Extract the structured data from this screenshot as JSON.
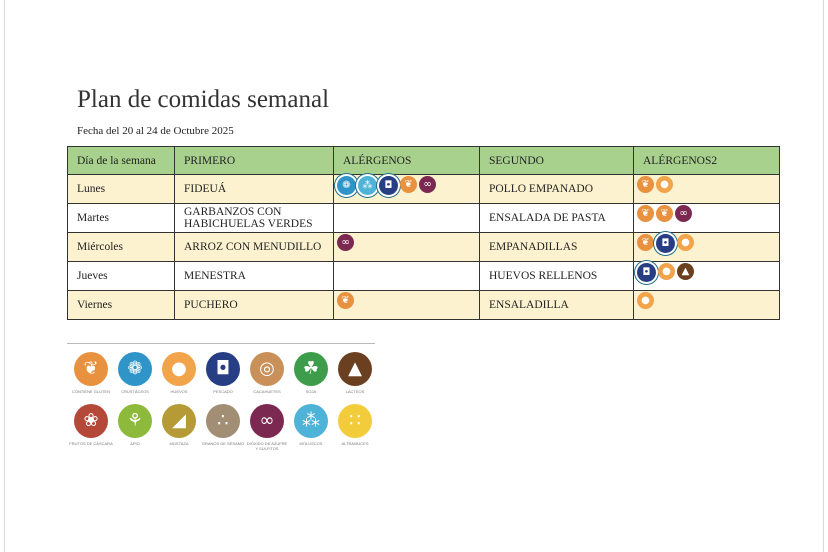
{
  "title": "Plan de comidas semanal",
  "date": "Fecha del 20 al 24 de Octubre 2025",
  "headers": [
    "Día de la semana",
    "PRIMERO",
    "ALÉRGENOS",
    "SEGUNDO",
    "ALÉRGENOS2"
  ],
  "rows": [
    {
      "day": "Lunes",
      "primero": "FIDEUÁ",
      "segundo": "POLLO EMPANADO"
    },
    {
      "day": "Martes",
      "primero": "GARBANZOS CON HABICHUELAS VERDES",
      "segundo": "ENSALADA DE PASTA"
    },
    {
      "day": "Miércoles",
      "primero": "ARROZ CON MENUDILLO",
      "segundo": "EMPANADILLAS"
    },
    {
      "day": "Jueves",
      "primero": "MENESTRA",
      "segundo": "HUEVOS RELLENOS"
    },
    {
      "day": "Viernes",
      "primero": "PUCHERO",
      "segundo": "ENSALADILLA"
    }
  ],
  "row_allergens": [
    {
      "primero": [
        "crustaceos-icon",
        "moluscos-icon",
        "pescado-icon",
        "gluten-icon",
        "sulfitos-icon"
      ],
      "segundo": [
        "gluten-icon",
        "huevos-icon"
      ]
    },
    {
      "primero": [],
      "segundo": [
        "gluten-icon",
        "gluten-icon",
        "sulfitos-icon"
      ]
    },
    {
      "primero": [
        "sulfitos-icon"
      ],
      "segundo": [
        "gluten-icon",
        "pescado-icon",
        "huevos-icon"
      ]
    },
    {
      "primero": [],
      "segundo": [
        "pescado-icon",
        "huevos-icon",
        "lacteos-icon"
      ]
    },
    {
      "primero": [
        "gluten-icon"
      ],
      "segundo": [
        "huevos-icon"
      ]
    }
  ],
  "legend": [
    {
      "icon": "gluten-icon",
      "label": "Contiene gluten",
      "color": "#e8913f"
    },
    {
      "icon": "crustaceos-icon",
      "label": "Crustáceos",
      "color": "#2f95c9"
    },
    {
      "icon": "huevos-icon",
      "label": "Huevos",
      "color": "#f1a44a"
    },
    {
      "icon": "pescado-icon",
      "label": "Pescado",
      "color": "#283e84"
    },
    {
      "icon": "cacahuetes-icon",
      "label": "Cacahuetes",
      "color": "#c9905a"
    },
    {
      "icon": "soja-icon",
      "label": "Soja",
      "color": "#3d9d4a"
    },
    {
      "icon": "lacteos-icon",
      "label": "Lácteos",
      "color": "#6b4021"
    },
    {
      "icon": "frutos-cascara-icon",
      "label": "Frutos de cáscara",
      "color": "#b4493a"
    },
    {
      "icon": "apio-icon",
      "label": "Apio",
      "color": "#8dba3a"
    },
    {
      "icon": "mostaza-icon",
      "label": "Mostaza",
      "color": "#b59a35"
    },
    {
      "icon": "sesamo-icon",
      "label": "Granos de sésamo",
      "color": "#a18e74"
    },
    {
      "icon": "sulfitos-icon",
      "label": "Dióxido de azufre y sulfitos",
      "color": "#7c2952"
    },
    {
      "icon": "moluscos-icon",
      "label": "Moluscos",
      "color": "#4fb3d8"
    },
    {
      "icon": "altramuces-icon",
      "label": "Altramuces",
      "color": "#f3cc3c"
    }
  ]
}
